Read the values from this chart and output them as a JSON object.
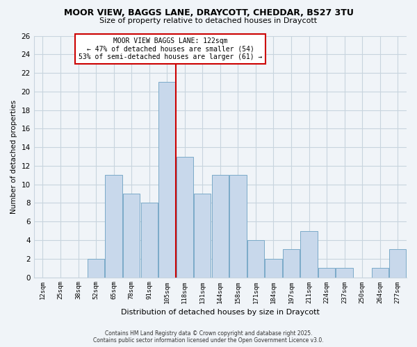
{
  "title": "MOOR VIEW, BAGGS LANE, DRAYCOTT, CHEDDAR, BS27 3TU",
  "subtitle": "Size of property relative to detached houses in Draycott",
  "xlabel": "Distribution of detached houses by size in Draycott",
  "ylabel": "Number of detached properties",
  "bar_color": "#c8d8eb",
  "bar_edge_color": "#7aaac8",
  "categories": [
    "12sqm",
    "25sqm",
    "38sqm",
    "52sqm",
    "65sqm",
    "78sqm",
    "91sqm",
    "105sqm",
    "118sqm",
    "131sqm",
    "144sqm",
    "158sqm",
    "171sqm",
    "184sqm",
    "197sqm",
    "211sqm",
    "224sqm",
    "237sqm",
    "250sqm",
    "264sqm",
    "277sqm"
  ],
  "values": [
    0,
    0,
    0,
    2,
    11,
    9,
    8,
    21,
    13,
    9,
    11,
    11,
    4,
    2,
    3,
    5,
    1,
    1,
    0,
    1,
    3
  ],
  "ylim": [
    0,
    26
  ],
  "yticks": [
    0,
    2,
    4,
    6,
    8,
    10,
    12,
    14,
    16,
    18,
    20,
    22,
    24,
    26
  ],
  "marker_line_color": "#cc0000",
  "marker_line_index": 7.5,
  "annotation_line1": "MOOR VIEW BAGGS LANE: 122sqm",
  "annotation_line2": "← 47% of detached houses are smaller (54)",
  "annotation_line3": "53% of semi-detached houses are larger (61) →",
  "footer1": "Contains HM Land Registry data © Crown copyright and database right 2025.",
  "footer2": "Contains public sector information licensed under the Open Government Licence v3.0.",
  "grid_color": "#c8d4de",
  "background_color": "#f0f4f8"
}
